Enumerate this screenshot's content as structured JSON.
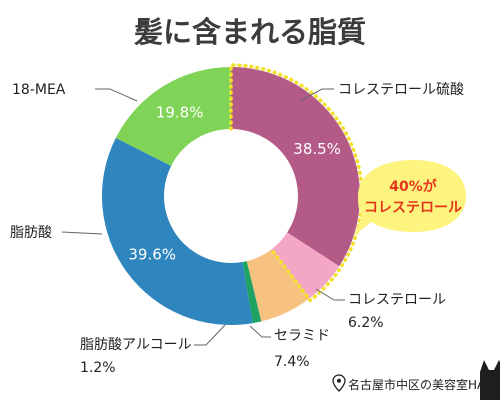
{
  "title": "髪に含まれる脂質",
  "chart_data": {
    "type": "pie",
    "title": "髪に含まれる脂質",
    "style": "donut",
    "start": "top, clockwise",
    "slices": [
      {
        "label": "コレステロール硫酸",
        "value": 38.5,
        "display": "38.5%",
        "color": "#b45a87",
        "label_position": "inside"
      },
      {
        "label": "コレステロール",
        "value": 6.2,
        "display": "6.2%",
        "color": "#f4a6c6",
        "label_position": "outside"
      },
      {
        "label": "セラミド",
        "value": 7.4,
        "display": "7.4%",
        "color": "#f7c27f",
        "label_position": "outside"
      },
      {
        "label": "脂肪酸アルコール",
        "value": 1.2,
        "display": "1.2%",
        "color": "#1fa364",
        "label_position": "outside"
      },
      {
        "label": "脂肪酸",
        "value": 39.6,
        "display": "39.6%",
        "color": "#2f86be",
        "label_position": "inside"
      },
      {
        "label": "18-MEA",
        "value": 19.8,
        "display": "19.8%",
        "color": "#7fd457",
        "label_position": "inside"
      }
    ],
    "highlight_color": "#f3e02a"
  },
  "callout": {
    "line1": "40%が",
    "line2": "コレステロール",
    "bg": "#fdf37f",
    "text_color": "#e4361b"
  },
  "credit": "名古屋市中区の美容室HANS",
  "colors": {
    "title": "#3c3c3c",
    "leader": "#666666"
  }
}
